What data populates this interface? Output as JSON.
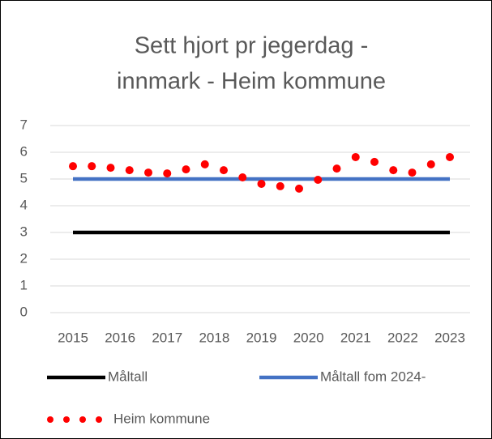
{
  "chart_data": {
    "type": "line",
    "title": [
      "Sett hjort pr jegerdag -",
      "innmark - Heim kommune"
    ],
    "x": [
      2015,
      2015.4,
      2015.8,
      2016.2,
      2016.6,
      2017,
      2017.4,
      2017.8,
      2018.2,
      2018.6,
      2019,
      2019.4,
      2019.8,
      2020.2,
      2020.6,
      2021,
      2021.4,
      2021.8,
      2022.2,
      2022.6,
      2023
    ],
    "series": [
      {
        "name": "Måltall",
        "color": "#000000",
        "style": "line",
        "values": [
          3,
          3,
          3,
          3,
          3,
          3,
          3,
          3,
          3,
          3,
          3,
          3,
          3,
          3,
          3,
          3,
          3,
          3,
          3,
          3,
          3
        ]
      },
      {
        "name": "Måltall fom 2024-",
        "color": "#4472c4",
        "style": "line",
        "values": [
          5,
          5,
          5,
          5,
          5,
          5,
          5,
          5,
          5,
          5,
          5,
          5,
          5,
          5,
          5,
          5,
          5,
          5,
          5,
          5,
          5
        ]
      },
      {
        "name": "Heim kommune",
        "color": "#ff0000",
        "style": "dots",
        "values": [
          5.48,
          5.48,
          5.42,
          5.33,
          5.24,
          5.21,
          5.36,
          5.55,
          5.33,
          5.06,
          4.82,
          4.73,
          4.64,
          4.97,
          5.39,
          5.82,
          5.64,
          5.33,
          5.24,
          5.55,
          5.82
        ]
      }
    ],
    "xlim": [
      2015,
      2023
    ],
    "xticks": [
      2015,
      2016,
      2017,
      2018,
      2019,
      2020,
      2021,
      2022,
      2023
    ],
    "ylim": [
      0,
      7
    ],
    "yticks": [
      0,
      1,
      2,
      3,
      4,
      5,
      6,
      7
    ],
    "grid": true,
    "legend": "bottom"
  }
}
